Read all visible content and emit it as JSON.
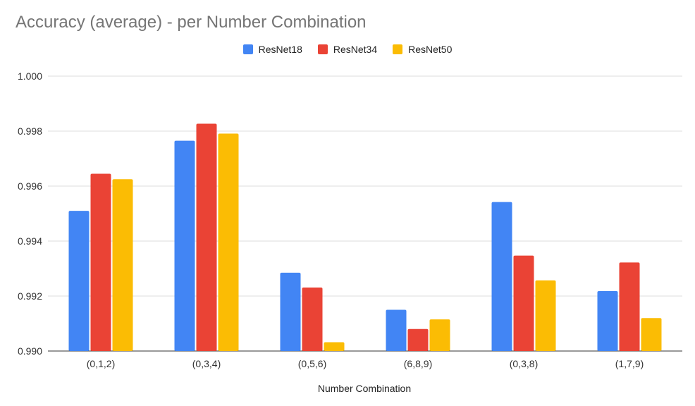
{
  "chart_data": {
    "type": "bar",
    "title": "Accuracy (average) - per Number Combination",
    "xlabel": "Number Combination",
    "ylabel": "",
    "ylim": [
      0.99,
      1.0
    ],
    "yticks": [
      "0.990",
      "0.992",
      "0.994",
      "0.996",
      "0.998",
      "1.000"
    ],
    "categories": [
      "(0,1,2)",
      "(0,3,4)",
      "(0,5,6)",
      "(6,8,9)",
      "(0,3,8)",
      "(1,7,9)"
    ],
    "legend_position": "top-center",
    "grid": true,
    "series": [
      {
        "name": "ResNet18",
        "color": "#4285f4",
        "values": [
          0.9951,
          0.99765,
          0.99285,
          0.9915,
          0.99542,
          0.99218
        ]
      },
      {
        "name": "ResNet34",
        "color": "#ea4335",
        "values": [
          0.99645,
          0.99827,
          0.99231,
          0.9908,
          0.99347,
          0.99322
        ]
      },
      {
        "name": "ResNet50",
        "color": "#fbbc04",
        "values": [
          0.99625,
          0.99791,
          0.99032,
          0.99115,
          0.99257,
          0.9912
        ]
      }
    ]
  }
}
